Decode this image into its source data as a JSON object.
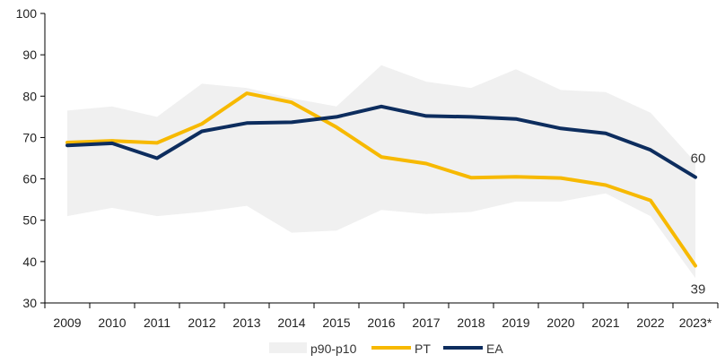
{
  "chart_data": {
    "type": "line",
    "categories": [
      "2009",
      "2010",
      "2011",
      "2012",
      "2013",
      "2014",
      "2015",
      "2016",
      "2017",
      "2018",
      "2019",
      "2020",
      "2021",
      "2022",
      "2023*"
    ],
    "ylim": [
      30,
      100
    ],
    "yticks": [
      30,
      40,
      50,
      60,
      70,
      80,
      90,
      100
    ],
    "band": {
      "name": "p90-p10",
      "color": "#f0f0f0",
      "upper": [
        76.5,
        77.5,
        75,
        83,
        82,
        79.5,
        77.5,
        87.5,
        83.5,
        82,
        86.5,
        81.5,
        81,
        76,
        64
      ],
      "lower": [
        51,
        53,
        51,
        52,
        53.5,
        47,
        47.5,
        52.5,
        51.5,
        52,
        54.5,
        54.5,
        56.5,
        51,
        36
      ]
    },
    "series": [
      {
        "name": "PT",
        "color": "#f7b900",
        "values": [
          68.8,
          69.2,
          68.7,
          73.3,
          80.7,
          78.5,
          72.5,
          65.3,
          63.7,
          60.3,
          60.5,
          60.2,
          58.5,
          54.8,
          39
        ]
      },
      {
        "name": "EA",
        "color": "#0d2d5e",
        "values": [
          68.1,
          68.6,
          65,
          71.5,
          73.5,
          73.7,
          75,
          77.5,
          75.2,
          75,
          74.5,
          72.2,
          71,
          67,
          60.4
        ]
      }
    ],
    "end_labels": {
      "EA": "60",
      "PT": "39"
    },
    "legend": {
      "position": "bottom-center",
      "items": [
        "p90-p10",
        "PT",
        "EA"
      ]
    },
    "grid": false
  }
}
